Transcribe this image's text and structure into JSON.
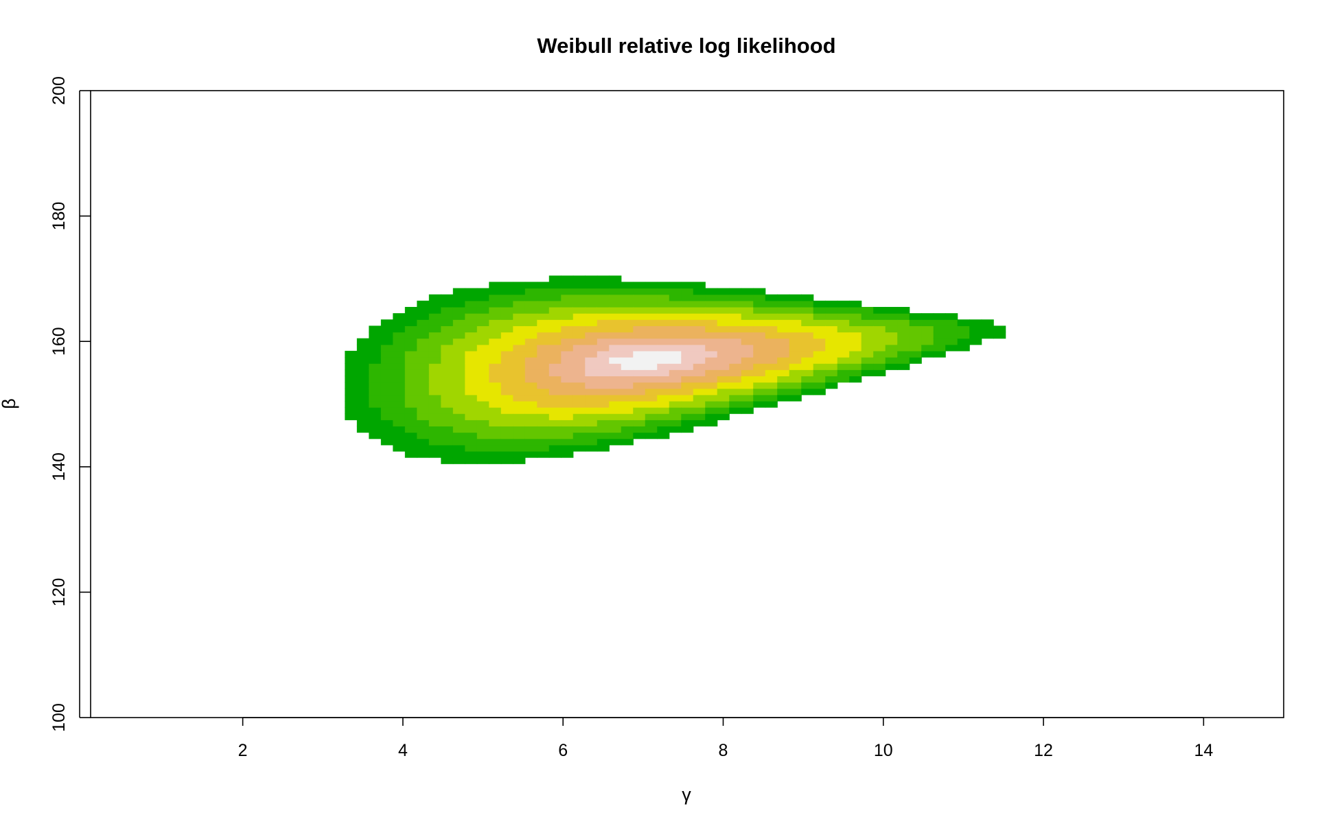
{
  "chart_data": {
    "type": "heatmap",
    "title": "Weibull relative log likelihood",
    "xlabel": "γ",
    "ylabel": "β",
    "xlim": [
      0.1,
      15.0
    ],
    "ylim": [
      100,
      200
    ],
    "x_ticks": [
      2,
      4,
      6,
      8,
      10,
      12,
      14
    ],
    "y_ticks": [
      100,
      120,
      140,
      160,
      180,
      200
    ],
    "grid": false,
    "legend": "none",
    "surface": {
      "quantity": "relative log likelihood",
      "max_at": [
        7.0,
        157
      ],
      "gamma_range": [
        0.1,
        15.0,
        0.15
      ],
      "beta_range": [
        100,
        200,
        1
      ],
      "visible_region": {
        "gamma": [
          3.2,
          11.6
        ],
        "beta": [
          132,
          183
        ]
      }
    },
    "colors": [
      "#00a600",
      "#2db600",
      "#63c600",
      "#a0d600",
      "#e6e600",
      "#e8c32e",
      "#ebb25e",
      "#edb48e",
      "#f0c9c0",
      "#f2f2f2"
    ],
    "background": "#ffffff"
  }
}
